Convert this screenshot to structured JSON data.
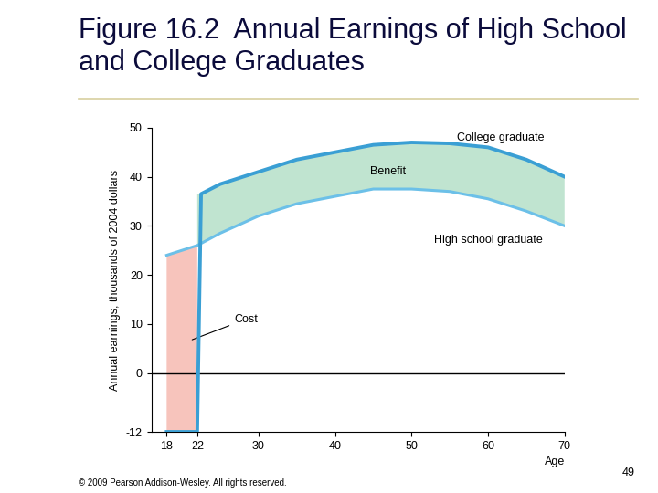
{
  "chart_data": {
    "type": "line",
    "title": "Figure 16.2  Annual Earnings of High School and College Graduates",
    "x_label": "Age",
    "y_label": "Annual earnings, thousands of 2004 dollars",
    "xlim": [
      16,
      70
    ],
    "xticks": [
      18,
      22,
      30,
      40,
      50,
      60,
      70
    ],
    "ylim": [
      -12,
      50
    ],
    "yticks": [
      -12,
      0,
      10,
      20,
      30,
      40,
      50
    ],
    "baseline": 0,
    "series": [
      {
        "name": "College graduate",
        "color": "#3a9fd4",
        "x": [
          18,
          22,
          22.5,
          25,
          30,
          35,
          40,
          45,
          50,
          55,
          60,
          65,
          70
        ],
        "values": [
          -12,
          -12,
          36.5,
          38.5,
          41,
          43.5,
          45,
          46.5,
          47,
          46.8,
          46,
          43.5,
          40
        ]
      },
      {
        "name": "High school graduate",
        "color": "#6cc0e8",
        "x": [
          18,
          22,
          25,
          30,
          35,
          40,
          45,
          50,
          55,
          60,
          65,
          70
        ],
        "values": [
          24,
          26,
          28.5,
          32,
          34.5,
          36,
          37.5,
          37.5,
          37,
          35.5,
          33,
          30
        ]
      }
    ],
    "annotations": [
      "Benefit",
      "Cost"
    ],
    "footer": "© 2009 Pearson Addison-Wesley. All rights reserved.",
    "page": 49
  }
}
